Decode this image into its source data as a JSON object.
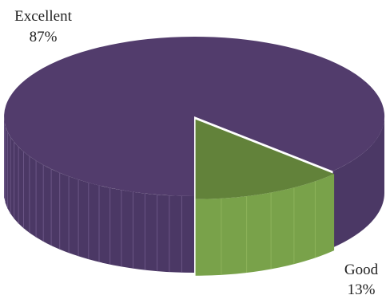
{
  "chart_data": {
    "type": "pie",
    "style": "3d-exploded",
    "slices": [
      {
        "label": "Excellent",
        "value": 87,
        "display": "87%",
        "color": "#523c6c",
        "side_color": "#4b3865"
      },
      {
        "label": "Good",
        "value": 13,
        "display": "13%",
        "color": "#62823a",
        "side_color": "#79a24a"
      }
    ],
    "title": ""
  }
}
